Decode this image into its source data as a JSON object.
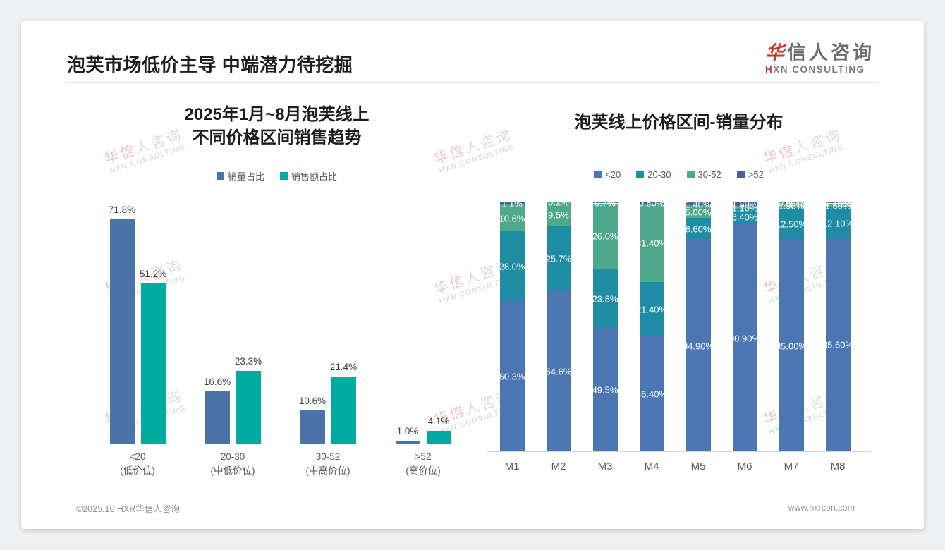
{
  "page": {
    "title": "泡芙市场低价主导 中端潜力待挖掘",
    "logo": {
      "zh_red": "华",
      "zh_rest": "信人咨询",
      "en_red": "H",
      "en_rest": "XN CONSULTING"
    },
    "watermark": {
      "line1_red": "华信",
      "line1_rest": "人咨询",
      "line2": "HXN CONSULTING"
    },
    "footer": {
      "left": "©2025.10 HXR华信人咨询",
      "right": "www.hxrcon.com"
    }
  },
  "chart_data": [
    {
      "type": "bar",
      "title": "2025年1月~8月泡芙线上 不同价格区间销售趋势",
      "title_lines": [
        "2025年1月~8月泡芙线上",
        "不同价格区间销售趋势"
      ],
      "legend_position": "top",
      "grid": false,
      "ylim": [
        0,
        100
      ],
      "categories": [
        {
          "line1": "<20",
          "line2": "(低价位)"
        },
        {
          "line1": "20-30",
          "line2": "(中低价位)"
        },
        {
          "line1": "30-52",
          "line2": "(中高价位)"
        },
        {
          "line1": ">52",
          "line2": "(高价位)"
        }
      ],
      "series": [
        {
          "name": "销量占比",
          "color": "#4a74a8",
          "values": [
            71.8,
            16.6,
            10.6,
            1.0
          ],
          "labels": [
            "71.8%",
            "16.6%",
            "10.6%",
            "1.0%"
          ]
        },
        {
          "name": "销售额占比",
          "color": "#00aca0",
          "values": [
            51.2,
            23.3,
            21.4,
            4.1
          ],
          "labels": [
            "51.2%",
            "23.3%",
            "21.4%",
            "4.1%"
          ]
        }
      ]
    },
    {
      "type": "stacked-bar",
      "title": "泡芙线上价格区间-销量分布",
      "legend_position": "top",
      "grid": false,
      "ylim": [
        0,
        100
      ],
      "stack_order": "bottom-to-top",
      "categories": [
        "M1",
        "M2",
        "M3",
        "M4",
        "M5",
        "M6",
        "M7",
        "M8"
      ],
      "series": [
        {
          "name": "<20",
          "color": "#4a77b4",
          "values": [
            60.3,
            64.6,
            49.5,
            46.4,
            84.9,
            90.9,
            85.0,
            85.6
          ],
          "labels": [
            "60.3%",
            "64.6%",
            "49.5%",
            "46.40%",
            "84.90%",
            "90.90%",
            "85.00%",
            "85.60%"
          ]
        },
        {
          "name": "20-30",
          "color": "#1e8ca4",
          "values": [
            28.0,
            25.7,
            23.8,
            21.4,
            8.6,
            6.4,
            12.5,
            12.1
          ],
          "labels": [
            "28.0%",
            "25.7%",
            "23.8%",
            "21.40%",
            "8.60%",
            "6.40%",
            "12.50%",
            "12.10%"
          ]
        },
        {
          "name": "30-52",
          "color": "#4ea98c",
          "values": [
            10.6,
            9.5,
            26.0,
            31.4,
            5.0,
            1.1,
            1.9,
            1.6
          ],
          "labels": [
            "10.6%",
            "9.5%",
            "26.0%",
            "31.40%",
            "5.00%",
            "1.10%",
            "1.90%",
            "1.60%"
          ]
        },
        {
          "name": ">52",
          "color": "#44609f",
          "values": [
            1.1,
            0.2,
            0.7,
            0.8,
            1.4,
            1.6,
            0.6,
            0.7
          ],
          "labels": [
            "1.1%",
            "0.2%",
            "0.7%",
            "0.80%",
            "1.40%",
            "1.60%",
            "0.60%",
            "0.70%"
          ]
        }
      ]
    }
  ]
}
